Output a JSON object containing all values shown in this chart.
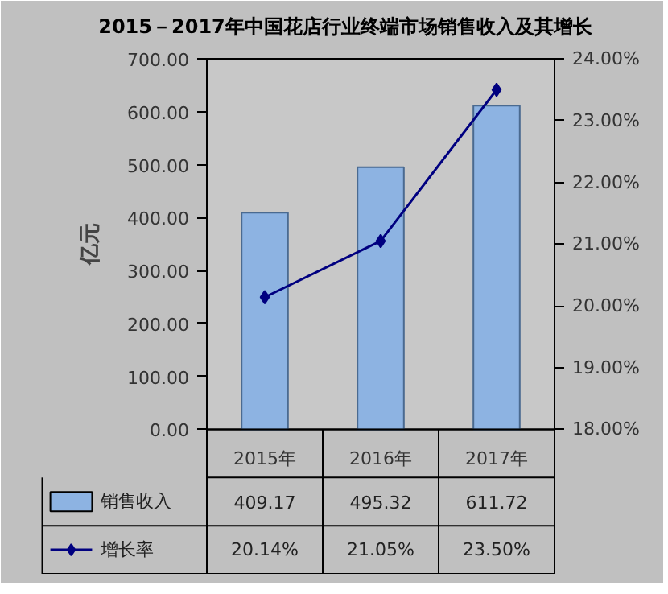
{
  "chart_data": {
    "type": "bar",
    "title": "2015－2017年中国花店行业终端市场销售收入及其增长",
    "ylabel": "亿元",
    "categories": [
      "2015年",
      "2016年",
      "2017年"
    ],
    "series": [
      {
        "name": "销售收入",
        "color": "#8db3e2",
        "values": [
          409.17,
          495.32,
          611.72
        ],
        "value_labels": [
          "409.17",
          "495.32",
          "611.72"
        ]
      },
      {
        "name": "增长率",
        "type": "line",
        "axis": "y2",
        "color": "#000080",
        "values": [
          20.14,
          21.05,
          23.5
        ],
        "value_labels": [
          "20.14%",
          "21.05%",
          "23.50%"
        ],
        "marker": "diamond"
      }
    ],
    "ylim": [
      0,
      700
    ],
    "yticks": [
      {
        "value": 0,
        "label": "0.00"
      },
      {
        "value": 100,
        "label": "100.00"
      },
      {
        "value": 200,
        "label": "200.00"
      },
      {
        "value": 300,
        "label": "300.00"
      },
      {
        "value": 400,
        "label": "400.00"
      },
      {
        "value": 500,
        "label": "500.00"
      },
      {
        "value": 600,
        "label": "600.00"
      },
      {
        "value": 700,
        "label": "700.00"
      }
    ],
    "y2lim": [
      18,
      24
    ],
    "y2ticks": [
      {
        "value": 18,
        "label": "18.00%"
      },
      {
        "value": 19,
        "label": "19.00%"
      },
      {
        "value": 20,
        "label": "20.00%"
      },
      {
        "value": 21,
        "label": "21.00%"
      },
      {
        "value": 22,
        "label": "22.00%"
      },
      {
        "value": 23,
        "label": "23.00%"
      },
      {
        "value": 24,
        "label": "24.00%"
      }
    ],
    "grid": false,
    "legend": "bottom"
  }
}
